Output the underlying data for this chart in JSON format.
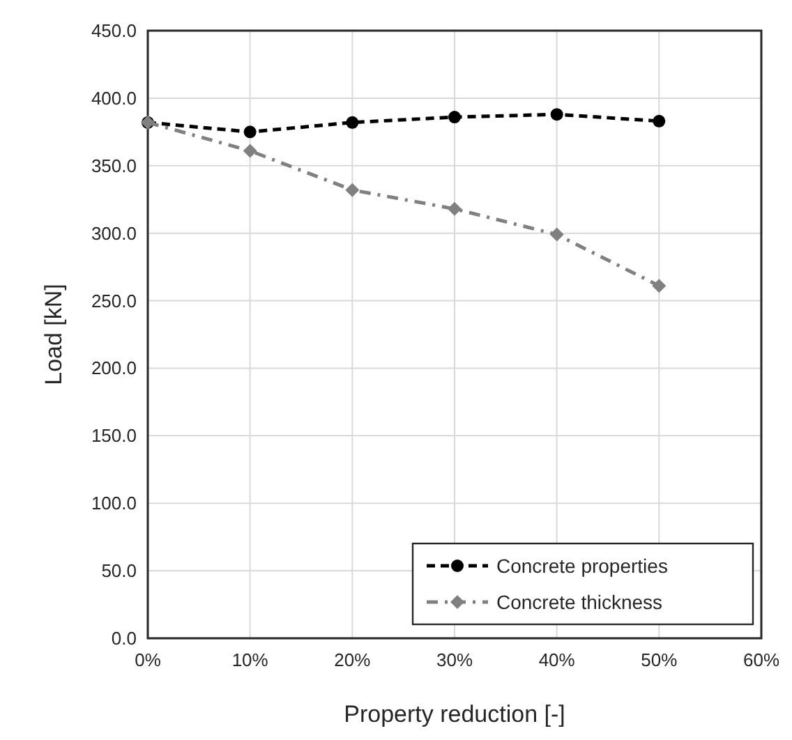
{
  "chart_data": {
    "type": "line",
    "xlabel": "Property reduction [-]",
    "ylabel": "Load [kN]",
    "x": [
      0,
      10,
      20,
      30,
      40,
      50
    ],
    "series": [
      {
        "name": "Concrete properties",
        "color": "#000000",
        "marker": "circle",
        "line_style": "dashed",
        "values": [
          382,
          375,
          382,
          386,
          388,
          383
        ]
      },
      {
        "name": "Concrete thickness",
        "color": "#808080",
        "marker": "diamond",
        "line_style": "dashdot",
        "values": [
          382,
          361,
          332,
          318,
          299,
          261
        ]
      }
    ],
    "xlim": [
      0,
      60
    ],
    "xticks": [
      {
        "value": 0,
        "label": "0%"
      },
      {
        "value": 10,
        "label": "10%"
      },
      {
        "value": 20,
        "label": "20%"
      },
      {
        "value": 30,
        "label": "30%"
      },
      {
        "value": 40,
        "label": "40%"
      },
      {
        "value": 50,
        "label": "50%"
      },
      {
        "value": 60,
        "label": "60%"
      }
    ],
    "ylim": [
      0,
      450
    ],
    "yticks": [
      {
        "value": 0,
        "label": "0.0"
      },
      {
        "value": 50,
        "label": "50.0"
      },
      {
        "value": 100,
        "label": "100.0"
      },
      {
        "value": 150,
        "label": "150.0"
      },
      {
        "value": 200,
        "label": "200.0"
      },
      {
        "value": 250,
        "label": "250.0"
      },
      {
        "value": 300,
        "label": "300.0"
      },
      {
        "value": 350,
        "label": "350.0"
      },
      {
        "value": 400,
        "label": "400.0"
      },
      {
        "value": 450,
        "label": "450.0"
      }
    ],
    "grid": true,
    "legend": "bottom right"
  }
}
